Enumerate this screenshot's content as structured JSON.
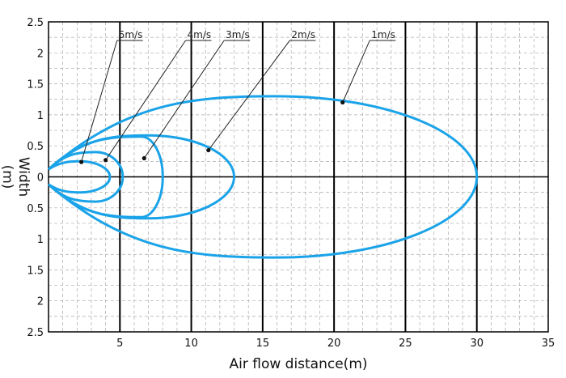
{
  "chart_data": {
    "type": "line",
    "xlabel": "Air flow distance(m)",
    "ylabel": "Width\n(m)",
    "xlim": [
      0,
      35
    ],
    "ylim": [
      -2.5,
      2.5
    ],
    "x_ticks": [
      "5",
      "10",
      "15",
      "20",
      "25",
      "30",
      "35"
    ],
    "y_ticks_top": [
      "2.5",
      "2",
      "1.5",
      "1",
      "0.5",
      "0"
    ],
    "y_ticks_bottom": [
      "0.5",
      "1",
      "1.5",
      "2",
      "2.5"
    ],
    "x_minor_step": 1,
    "y_minor_step": 0.25,
    "grid": true,
    "curve_color": "#1aa3e8",
    "series": [
      {
        "name": "5m/s",
        "origin_half_width": 0.12,
        "reach": 4.3,
        "max_width": 0.25,
        "x_at_max": 2.2,
        "label_x": 4.8,
        "label_y": 2.2,
        "marker_x": 2.3,
        "marker_y": 0.24
      },
      {
        "name": "4m/s",
        "origin_half_width": 0.12,
        "reach": 5.2,
        "max_width": 0.4,
        "x_at_max": 3.3,
        "label_x": 9.6,
        "label_y": 2.2,
        "marker_x": 4.0,
        "marker_y": 0.27
      },
      {
        "name": "3m/s",
        "origin_half_width": 0.12,
        "reach": 8.0,
        "max_width": 0.65,
        "x_at_max": 6.5,
        "label_x": 12.3,
        "label_y": 2.2,
        "marker_x": 6.7,
        "marker_y": 0.3
      },
      {
        "name": "2m/s",
        "origin_half_width": 0.12,
        "reach": 13.0,
        "max_width": 0.67,
        "x_at_max": 7.0,
        "label_x": 16.9,
        "label_y": 2.2,
        "marker_x": 11.2,
        "marker_y": 0.43
      },
      {
        "name": "1m/s",
        "origin_half_width": 0.12,
        "reach": 30.0,
        "max_width": 1.3,
        "x_at_max": 16.0,
        "label_x": 22.5,
        "label_y": 2.2,
        "marker_x": 20.6,
        "marker_y": 1.2
      }
    ]
  }
}
